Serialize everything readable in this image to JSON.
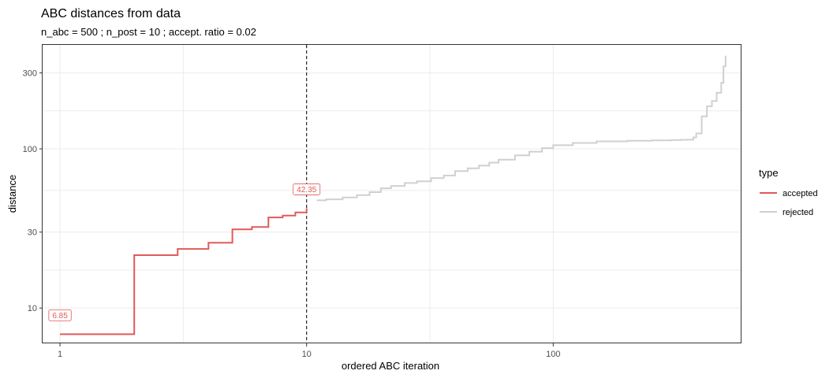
{
  "chart_data": {
    "type": "line",
    "title": "ABC distances from data",
    "subtitle": "n_abc = 500 ; n_post = 10 ; accept. ratio = 0.02",
    "xlabel": "ordered ABC iteration",
    "ylabel": "distance",
    "x_scale": "log10",
    "y_scale": "log10",
    "xlim": [
      0.85,
      580
    ],
    "ylim": [
      6,
      450
    ],
    "x_ticks": [
      1,
      10,
      100
    ],
    "x_tick_labels": [
      "1",
      "10",
      "100"
    ],
    "y_ticks": [
      10,
      30,
      100,
      300
    ],
    "y_tick_labels": [
      "10",
      "30",
      "100",
      "300"
    ],
    "grid": true,
    "legend": {
      "title": "type",
      "position": "right"
    },
    "threshold_x": 10,
    "series": [
      {
        "name": "accepted",
        "color": "#e05a5a",
        "x": [
          1,
          2,
          3,
          4,
          5,
          6,
          7,
          8,
          9,
          10
        ],
        "y": [
          6.85,
          21.5,
          23.5,
          25.7,
          31.2,
          32.3,
          37.1,
          38.1,
          39.9,
          42.35
        ]
      },
      {
        "name": "rejected",
        "color": "#d0d0d0",
        "x": [
          11,
          12,
          14,
          16,
          18,
          20,
          22,
          25,
          28,
          32,
          36,
          40,
          45,
          50,
          55,
          60,
          70,
          80,
          90,
          100,
          120,
          150,
          200,
          250,
          300,
          330,
          350,
          370,
          380,
          400,
          420,
          440,
          460,
          480,
          490,
          500
        ],
        "y": [
          47.5,
          48.2,
          49.5,
          51.2,
          53.5,
          56.5,
          58.5,
          61.0,
          62.5,
          65.5,
          68.0,
          72.5,
          75.5,
          78.5,
          82.0,
          85.5,
          91.0,
          96.0,
          101.0,
          105.5,
          109.0,
          111.5,
          112.5,
          113.0,
          113.5,
          114.0,
          114.2,
          118.0,
          125.0,
          160.0,
          185.0,
          200.0,
          225.0,
          260.0,
          330.0,
          385.0
        ]
      }
    ],
    "annotations": [
      {
        "label": "6.85",
        "x": 1,
        "y": 6.85,
        "color": "#e05a5a"
      },
      {
        "label": "42.35",
        "x": 10,
        "y": 42.35,
        "color": "#e05a5a"
      }
    ]
  }
}
